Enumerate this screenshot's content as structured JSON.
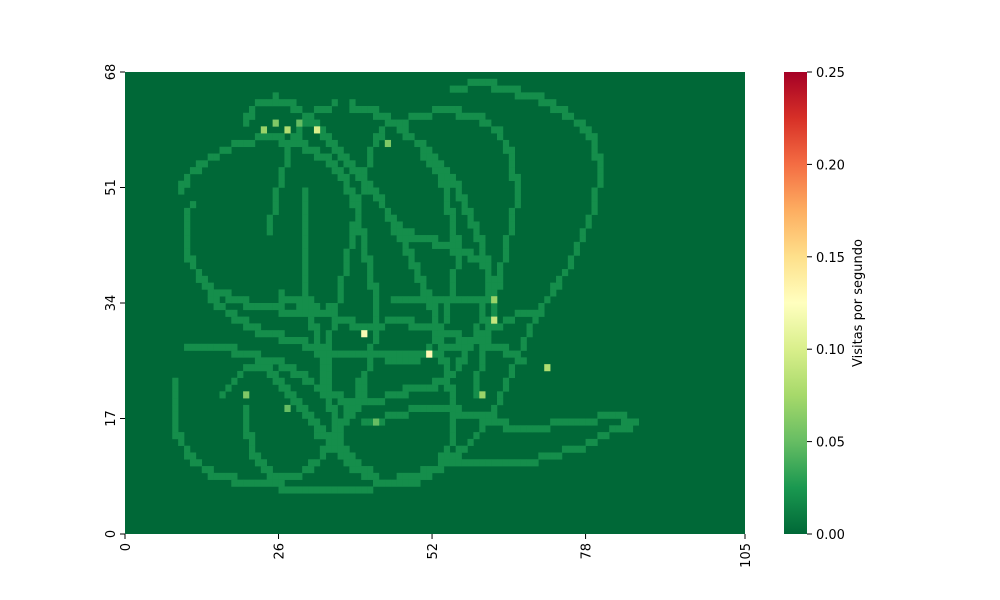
{
  "chart_data": {
    "type": "heatmap",
    "title": "",
    "xlabel": "",
    "ylabel": "",
    "xlim": [
      0,
      105
    ],
    "ylim": [
      0,
      68
    ],
    "x_ticks": [
      0,
      26,
      52,
      78,
      105
    ],
    "y_ticks": [
      0,
      17,
      34,
      51,
      68
    ],
    "x_tick_labels": [
      "0",
      "26",
      "52",
      "78",
      "105"
    ],
    "y_tick_labels": [
      "0",
      "17",
      "34",
      "51",
      "68"
    ],
    "grid": false,
    "colormap": "RdYlGn_r",
    "colorbar": {
      "label": "Visitas por segundo",
      "vmin": 0.0,
      "vmax": 0.25,
      "ticks": [
        0.0,
        0.05,
        0.1,
        0.15,
        0.2,
        0.25
      ],
      "tick_labels": [
        "0.00",
        "0.05",
        "0.10",
        "0.15",
        "0.20",
        "0.25"
      ]
    },
    "background_value": 0.0,
    "track_value": 0.02,
    "track_paths": [
      [
        [
          20,
          60
        ],
        [
          22,
          63
        ],
        [
          25,
          64
        ],
        [
          28,
          63
        ],
        [
          31,
          61
        ],
        [
          34,
          58
        ],
        [
          37,
          55
        ],
        [
          40,
          52
        ],
        [
          43,
          49
        ],
        [
          46,
          45
        ],
        [
          48,
          41
        ],
        [
          50,
          37
        ],
        [
          52,
          33
        ],
        [
          53,
          29
        ],
        [
          54,
          25
        ],
        [
          55,
          21
        ],
        [
          56,
          17
        ],
        [
          55,
          13
        ],
        [
          53,
          10
        ],
        [
          50,
          8
        ],
        [
          46,
          7
        ],
        [
          42,
          8
        ],
        [
          38,
          10
        ],
        [
          35,
          13
        ]
      ],
      [
        [
          9,
          50
        ],
        [
          11,
          53
        ],
        [
          14,
          55
        ],
        [
          18,
          57
        ],
        [
          22,
          58
        ],
        [
          26,
          58
        ],
        [
          30,
          57
        ],
        [
          34,
          55
        ],
        [
          37,
          52
        ],
        [
          39,
          48
        ],
        [
          40,
          44
        ],
        [
          41,
          40
        ],
        [
          42,
          36
        ],
        [
          42,
          32
        ],
        [
          42,
          28
        ],
        [
          41,
          24
        ],
        [
          40,
          20
        ],
        [
          38,
          17
        ],
        [
          35,
          15
        ],
        [
          32,
          14
        ]
      ],
      [
        [
          11,
          48
        ],
        [
          10,
          44
        ],
        [
          11,
          40
        ],
        [
          13,
          37
        ],
        [
          15,
          34
        ],
        [
          18,
          32
        ],
        [
          22,
          30
        ],
        [
          26,
          29
        ],
        [
          30,
          28
        ],
        [
          34,
          27
        ],
        [
          38,
          26
        ],
        [
          42,
          26
        ],
        [
          46,
          26
        ],
        [
          50,
          26
        ],
        [
          54,
          27
        ],
        [
          58,
          28
        ],
        [
          62,
          30
        ],
        [
          66,
          32
        ],
        [
          70,
          32
        ]
      ],
      [
        [
          8,
          22
        ],
        [
          8,
          18
        ],
        [
          9,
          14
        ],
        [
          11,
          11
        ],
        [
          14,
          9
        ],
        [
          18,
          8
        ],
        [
          22,
          7
        ],
        [
          26,
          7
        ],
        [
          30,
          6
        ],
        [
          34,
          6
        ],
        [
          38,
          6
        ],
        [
          42,
          7
        ],
        [
          46,
          8
        ],
        [
          50,
          9
        ],
        [
          54,
          10
        ],
        [
          58,
          10
        ],
        [
          62,
          10
        ],
        [
          66,
          10
        ],
        [
          70,
          11
        ],
        [
          74,
          12
        ],
        [
          78,
          13
        ],
        [
          82,
          15
        ],
        [
          86,
          16
        ]
      ],
      [
        [
          86,
          16
        ],
        [
          84,
          17
        ],
        [
          80,
          17
        ],
        [
          76,
          16
        ],
        [
          72,
          16
        ],
        [
          68,
          15
        ],
        [
          64,
          16
        ],
        [
          60,
          17
        ],
        [
          56,
          18
        ],
        [
          52,
          18
        ],
        [
          48,
          18
        ],
        [
          44,
          17
        ],
        [
          40,
          16
        ]
      ],
      [
        [
          55,
          65
        ],
        [
          58,
          66
        ],
        [
          62,
          66
        ],
        [
          66,
          65
        ],
        [
          70,
          64
        ],
        [
          74,
          62
        ],
        [
          77,
          60
        ],
        [
          79,
          58
        ],
        [
          80,
          55
        ],
        [
          80,
          51
        ],
        [
          79,
          47
        ],
        [
          77,
          43
        ],
        [
          75,
          39
        ],
        [
          72,
          35
        ],
        [
          69,
          31
        ],
        [
          67,
          27
        ],
        [
          65,
          23
        ],
        [
          63,
          19
        ],
        [
          61,
          16
        ],
        [
          58,
          13
        ],
        [
          55,
          11
        ]
      ],
      [
        [
          46,
          59
        ],
        [
          48,
          61
        ],
        [
          52,
          62
        ],
        [
          56,
          62
        ],
        [
          60,
          61
        ],
        [
          63,
          59
        ],
        [
          65,
          56
        ],
        [
          66,
          52
        ],
        [
          66,
          48
        ],
        [
          65,
          44
        ],
        [
          64,
          40
        ],
        [
          63,
          36
        ],
        [
          62,
          32
        ],
        [
          61,
          28
        ],
        [
          60,
          24
        ],
        [
          59,
          20
        ]
      ],
      [
        [
          38,
          63
        ],
        [
          42,
          62
        ],
        [
          46,
          60
        ],
        [
          50,
          57
        ],
        [
          53,
          54
        ],
        [
          56,
          51
        ],
        [
          58,
          47
        ],
        [
          60,
          43
        ],
        [
          61,
          39
        ],
        [
          61,
          35
        ],
        [
          60,
          31
        ],
        [
          58,
          27
        ],
        [
          56,
          24
        ],
        [
          53,
          22
        ],
        [
          50,
          21
        ],
        [
          47,
          21
        ]
      ],
      [
        [
          34,
          22
        ],
        [
          34,
          26
        ],
        [
          35,
          30
        ],
        [
          36,
          34
        ],
        [
          37,
          38
        ],
        [
          38,
          42
        ],
        [
          39,
          46
        ],
        [
          40,
          50
        ],
        [
          41,
          54
        ],
        [
          42,
          57
        ],
        [
          44,
          60
        ]
      ],
      [
        [
          24,
          44
        ],
        [
          25,
          47
        ],
        [
          26,
          51
        ],
        [
          27,
          54
        ],
        [
          28,
          57
        ],
        [
          30,
          60
        ],
        [
          32,
          62
        ],
        [
          35,
          63
        ]
      ],
      [
        [
          30,
          50
        ],
        [
          30,
          46
        ],
        [
          30,
          42
        ],
        [
          30,
          38
        ],
        [
          31,
          34
        ],
        [
          32,
          30
        ],
        [
          33,
          26
        ],
        [
          34,
          22
        ],
        [
          35,
          18
        ],
        [
          36,
          14
        ],
        [
          38,
          11
        ],
        [
          41,
          9
        ]
      ],
      [
        [
          10,
          27
        ],
        [
          14,
          27
        ],
        [
          18,
          27
        ],
        [
          22,
          26
        ],
        [
          26,
          25
        ],
        [
          30,
          23
        ],
        [
          33,
          21
        ],
        [
          36,
          20
        ],
        [
          40,
          19
        ],
        [
          44,
          20
        ],
        [
          48,
          21
        ],
        [
          52,
          22
        ]
      ],
      [
        [
          16,
          20
        ],
        [
          18,
          22
        ],
        [
          20,
          24
        ],
        [
          22,
          25
        ],
        [
          24,
          24
        ],
        [
          26,
          22
        ],
        [
          28,
          20
        ],
        [
          30,
          18
        ],
        [
          32,
          16
        ],
        [
          34,
          14
        ],
        [
          36,
          12
        ]
      ],
      [
        [
          45,
          45
        ],
        [
          48,
          44
        ],
        [
          52,
          43
        ],
        [
          55,
          42
        ],
        [
          58,
          41
        ],
        [
          61,
          40
        ],
        [
          62,
          37
        ],
        [
          62,
          34
        ],
        [
          60,
          34
        ],
        [
          56,
          34
        ],
        [
          52,
          34
        ],
        [
          48,
          34
        ],
        [
          45,
          34
        ]
      ],
      [
        [
          50,
          56
        ],
        [
          52,
          54
        ],
        [
          54,
          51
        ],
        [
          55,
          47
        ],
        [
          56,
          43
        ],
        [
          56,
          39
        ],
        [
          55,
          35
        ],
        [
          54,
          31
        ],
        [
          52,
          28
        ],
        [
          50,
          26
        ],
        [
          47,
          25
        ],
        [
          44,
          25
        ]
      ],
      [
        [
          20,
          18
        ],
        [
          21,
          14
        ],
        [
          22,
          11
        ],
        [
          24,
          9
        ],
        [
          27,
          8
        ],
        [
          30,
          9
        ],
        [
          33,
          11
        ],
        [
          35,
          14
        ],
        [
          37,
          17
        ],
        [
          39,
          20
        ],
        [
          40,
          23
        ]
      ],
      [
        [
          40,
          30
        ],
        [
          44,
          31
        ],
        [
          48,
          31
        ],
        [
          52,
          30
        ],
        [
          56,
          29
        ],
        [
          60,
          28
        ],
        [
          64,
          27
        ],
        [
          67,
          25
        ]
      ],
      [
        [
          26,
          35
        ],
        [
          29,
          34
        ],
        [
          32,
          33
        ],
        [
          35,
          32
        ],
        [
          38,
          31
        ],
        [
          40,
          30
        ]
      ],
      [
        [
          14,
          36
        ],
        [
          17,
          35
        ],
        [
          20,
          34
        ],
        [
          23,
          33
        ],
        [
          26,
          33
        ],
        [
          29,
          32
        ],
        [
          32,
          32
        ],
        [
          34,
          33
        ]
      ]
    ],
    "hotspots": [
      {
        "x": 23,
        "y": 59,
        "value": 0.07
      },
      {
        "x": 25,
        "y": 60,
        "value": 0.06
      },
      {
        "x": 27,
        "y": 59,
        "value": 0.08
      },
      {
        "x": 29,
        "y": 60,
        "value": 0.05
      },
      {
        "x": 32,
        "y": 59,
        "value": 0.1
      },
      {
        "x": 44,
        "y": 57,
        "value": 0.06
      },
      {
        "x": 20,
        "y": 20,
        "value": 0.06
      },
      {
        "x": 27,
        "y": 18,
        "value": 0.05
      },
      {
        "x": 40,
        "y": 29,
        "value": 0.12
      },
      {
        "x": 51,
        "y": 26,
        "value": 0.13
      },
      {
        "x": 62,
        "y": 34,
        "value": 0.07
      },
      {
        "x": 62,
        "y": 31,
        "value": 0.09
      },
      {
        "x": 71,
        "y": 24,
        "value": 0.08
      },
      {
        "x": 60,
        "y": 20,
        "value": 0.07
      },
      {
        "x": 42,
        "y": 16,
        "value": 0.05
      }
    ]
  }
}
